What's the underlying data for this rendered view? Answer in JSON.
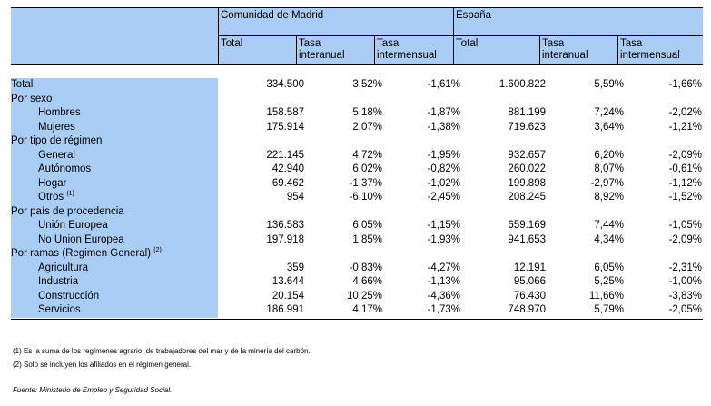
{
  "header": {
    "group_madrid": "Comunidad de Madrid",
    "group_espana": "España",
    "col_total": "Total",
    "col_interanual_1": "Tasa",
    "col_interanual_2": "interanual",
    "col_intermensual_1": "Tasa",
    "col_intermensual_2": "intermensual"
  },
  "rows": [
    {
      "label": "Total",
      "indent": false,
      "sup": "",
      "values": [
        "334.500",
        "3,52%",
        "-1,61%",
        "1.600.822",
        "5,59%",
        "-1,66%"
      ]
    },
    {
      "label": "Por sexo",
      "indent": false,
      "sup": "",
      "values": [
        "",
        "",
        "",
        "",
        "",
        ""
      ]
    },
    {
      "label": "Hombres",
      "indent": true,
      "sup": "",
      "values": [
        "158.587",
        "5,18%",
        "-1,87%",
        "881.199",
        "7,24%",
        "-2,02%"
      ]
    },
    {
      "label": "Mujeres",
      "indent": true,
      "sup": "",
      "values": [
        "175.914",
        "2,07%",
        "-1,38%",
        "719.623",
        "3,64%",
        "-1,21%"
      ]
    },
    {
      "label": "Por tipo de régimen",
      "indent": false,
      "sup": "",
      "values": [
        "",
        "",
        "",
        "",
        "",
        ""
      ]
    },
    {
      "label": "General",
      "indent": true,
      "sup": "",
      "values": [
        "221.145",
        "4,72%",
        "-1,95%",
        "932.657",
        "6,20%",
        "-2,09%"
      ]
    },
    {
      "label": "Autónomos",
      "indent": true,
      "sup": "",
      "values": [
        "42.940",
        "6,02%",
        "-0,82%",
        "260.022",
        "8,07%",
        "-0,61%"
      ]
    },
    {
      "label": "Hogar",
      "indent": true,
      "sup": "",
      "values": [
        "69.462",
        "-1,37%",
        "-1,02%",
        "199.898",
        "-2,97%",
        "-1,12%"
      ]
    },
    {
      "label": "Otros",
      "indent": true,
      "sup": "(1)",
      "values": [
        "954",
        "-6,10%",
        "-2,45%",
        "208.245",
        "8,92%",
        "-1,52%"
      ]
    },
    {
      "label": "Por país de procedencia",
      "indent": false,
      "sup": "",
      "values": [
        "",
        "",
        "",
        "",
        "",
        ""
      ]
    },
    {
      "label": "Unión Europea",
      "indent": true,
      "sup": "",
      "values": [
        "136.583",
        "6,05%",
        "-1,15%",
        "659.169",
        "7,44%",
        "-1,05%"
      ]
    },
    {
      "label": "No Union Europea",
      "indent": true,
      "sup": "",
      "values": [
        "197.918",
        "1,85%",
        "-1,93%",
        "941.653",
        "4,34%",
        "-2,09%"
      ]
    },
    {
      "label": "Por ramas (Regimen General)",
      "indent": false,
      "sup": "(2)",
      "values": [
        "",
        "",
        "",
        "",
        "",
        ""
      ]
    },
    {
      "label": "Agricultura",
      "indent": true,
      "sup": "",
      "values": [
        "359",
        "-0,83%",
        "-4,27%",
        "12.191",
        "6,05%",
        "-2,31%"
      ]
    },
    {
      "label": "Industria",
      "indent": true,
      "sup": "",
      "values": [
        "13.644",
        "4,66%",
        "-1,13%",
        "95.066",
        "5,25%",
        "-1,00%"
      ]
    },
    {
      "label": "Construcción",
      "indent": true,
      "sup": "",
      "values": [
        "20.154",
        "10,25%",
        "-4,36%",
        "76.430",
        "11,66%",
        "-3,83%"
      ]
    },
    {
      "label": "Servicios",
      "indent": true,
      "sup": "",
      "values": [
        "186.991",
        "4,17%",
        "-1,73%",
        "748.970",
        "5,79%",
        "-2,05%"
      ]
    }
  ],
  "footnotes": [
    "(1) Es la suma de los regímenes  agrario, de trabajadores del mar y de la minería del carbón.",
    "(2) Solo se incluyen los afiliados en el régimen general."
  ],
  "source": "Fuente: Ministerio de Empleo y Seguridad Social.",
  "colors": {
    "header_blue": "#a9cdf5"
  }
}
